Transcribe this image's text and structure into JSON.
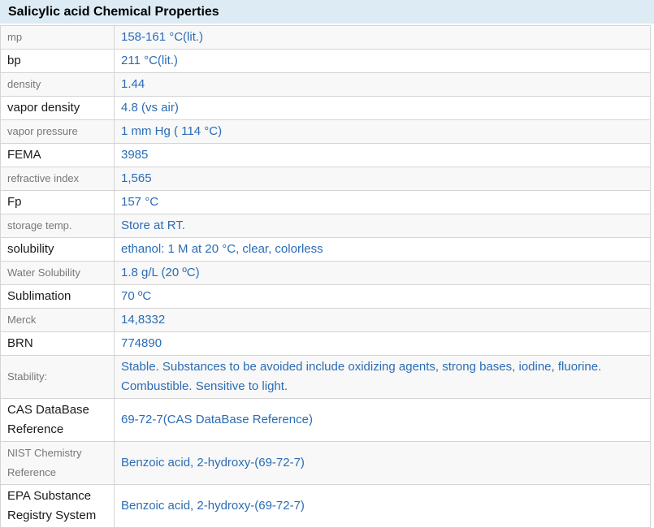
{
  "page": {
    "title": "Salicylic acid Chemical Properties"
  },
  "colors": {
    "header_bg": "#dcebf4",
    "border": "#d4d4d4",
    "striped_bg": "#f8f8f8",
    "value_blue": "#2b6cb5",
    "muted_label": "#777777",
    "strong_label": "#1a1a1a"
  },
  "table": {
    "rows": [
      {
        "label": "mp",
        "value": "158-161 °C(lit.)",
        "muted": true
      },
      {
        "label": "bp",
        "value": "211 °C(lit.)",
        "muted": false
      },
      {
        "label": "density",
        "value": "1.44",
        "muted": true
      },
      {
        "label": "vapor density",
        "value": "4.8 (vs air)",
        "muted": false
      },
      {
        "label": "vapor pressure",
        "value": "1 mm Hg ( 114 °C)",
        "muted": true
      },
      {
        "label": "FEMA",
        "value": "3985",
        "muted": false
      },
      {
        "label": "refractive index",
        "value": "1,565",
        "muted": true
      },
      {
        "label": "Fp",
        "value": "157 °C",
        "muted": false
      },
      {
        "label": "storage temp.",
        "value": "Store at RT.",
        "muted": true
      },
      {
        "label": "solubility",
        "value": "ethanol: 1 M at 20 °C, clear, colorless",
        "muted": false
      },
      {
        "label": "Water Solubility",
        "value": "1.8 g/L (20 ºC)",
        "muted": true
      },
      {
        "label": "Sublimation",
        "value": "70 ºC",
        "muted": false
      },
      {
        "label": "Merck",
        "value": "14,8332",
        "muted": true
      },
      {
        "label": "BRN",
        "value": "774890",
        "muted": false
      },
      {
        "label": "Stability:",
        "value": "Stable. Substances to be avoided include oxidizing agents, strong bases, iodine, fluorine. Combustible. Sensitive to light.",
        "muted": true
      },
      {
        "label": "CAS DataBase Reference",
        "value": "69-72-7(CAS DataBase Reference)",
        "muted": false
      },
      {
        "label": "NIST Chemistry Reference",
        "value": "Benzoic acid, 2-hydroxy-(69-72-7)",
        "muted": true
      },
      {
        "label": "EPA Substance Registry System",
        "value": "Benzoic acid, 2-hydroxy-(69-72-7)",
        "muted": false
      }
    ]
  }
}
